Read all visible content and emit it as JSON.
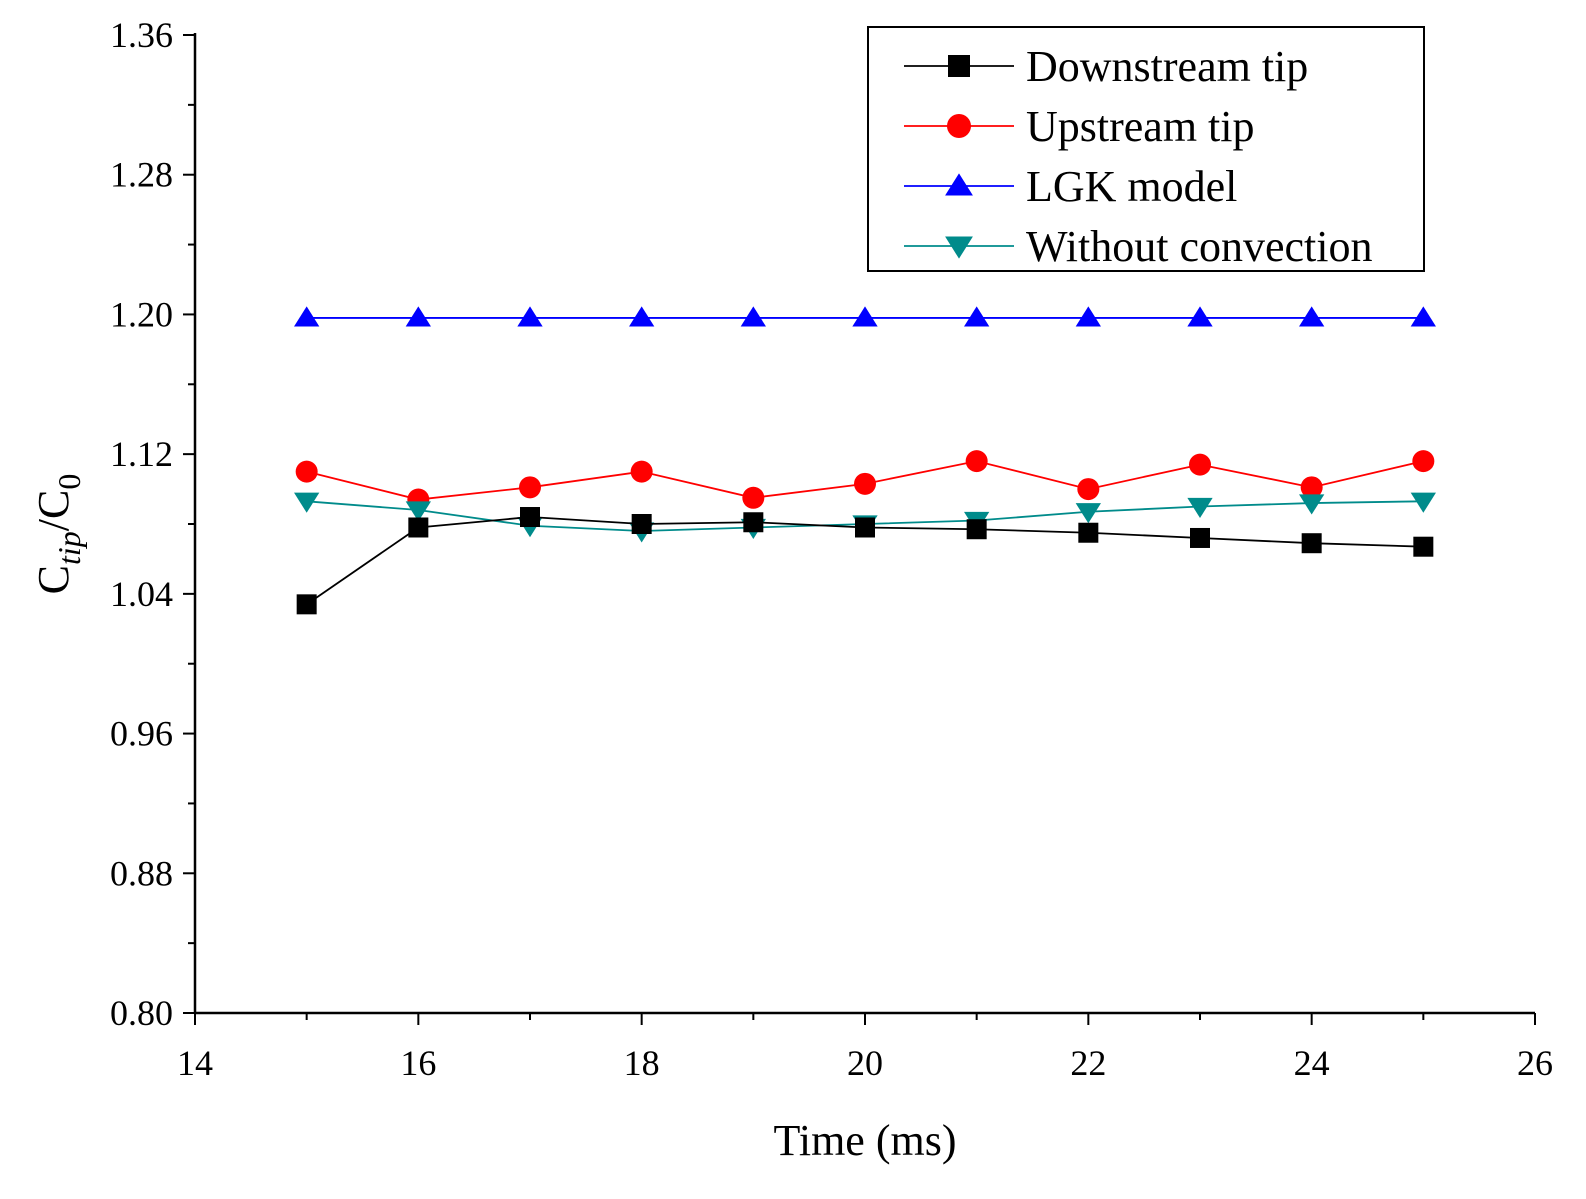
{
  "chart_data": {
    "type": "line",
    "title": "",
    "xlabel": "Time (ms)",
    "ylabel": {
      "main": "C",
      "sub1": "tip",
      "slash": "/C",
      "sub2": "0"
    },
    "xlim": [
      14,
      26
    ],
    "ylim": [
      0.8,
      1.36
    ],
    "x_ticks": [
      14,
      16,
      18,
      20,
      22,
      24,
      26
    ],
    "x_tick_labels": [
      "14",
      "16",
      "18",
      "20",
      "22",
      "24",
      "26"
    ],
    "y_ticks": [
      0.8,
      0.88,
      0.96,
      1.04,
      1.12,
      1.2,
      1.28,
      1.36
    ],
    "y_tick_labels": [
      "0.80",
      "0.88",
      "0.96",
      "1.04",
      "1.12",
      "1.20",
      "1.28",
      "1.36"
    ],
    "grid": false,
    "legend_position": "top-right",
    "x": [
      15,
      16,
      17,
      18,
      19,
      20,
      21,
      22,
      23,
      24,
      25
    ],
    "series": [
      {
        "name": "Downstream tip",
        "color": "#000000",
        "marker": "square",
        "values": [
          1.034,
          1.078,
          1.084,
          1.08,
          1.081,
          1.078,
          1.077,
          1.075,
          1.072,
          1.069,
          1.067
        ]
      },
      {
        "name": "Upstream tip",
        "color": "#ff0000",
        "marker": "circle",
        "values": [
          1.11,
          1.094,
          1.101,
          1.11,
          1.095,
          1.103,
          1.116,
          1.1,
          1.114,
          1.101,
          1.116
        ]
      },
      {
        "name": "LGK model",
        "color": "#0000ff",
        "marker": "triangle-up",
        "values": [
          1.198,
          1.198,
          1.198,
          1.198,
          1.198,
          1.198,
          1.198,
          1.198,
          1.198,
          1.198,
          1.198
        ]
      },
      {
        "name": "Without convection",
        "color": "#008b8b",
        "marker": "triangle-down",
        "values": [
          1.093,
          1.088,
          1.079,
          1.076,
          1.078,
          1.08,
          1.082,
          1.087,
          1.09,
          1.092,
          1.093
        ]
      }
    ]
  }
}
